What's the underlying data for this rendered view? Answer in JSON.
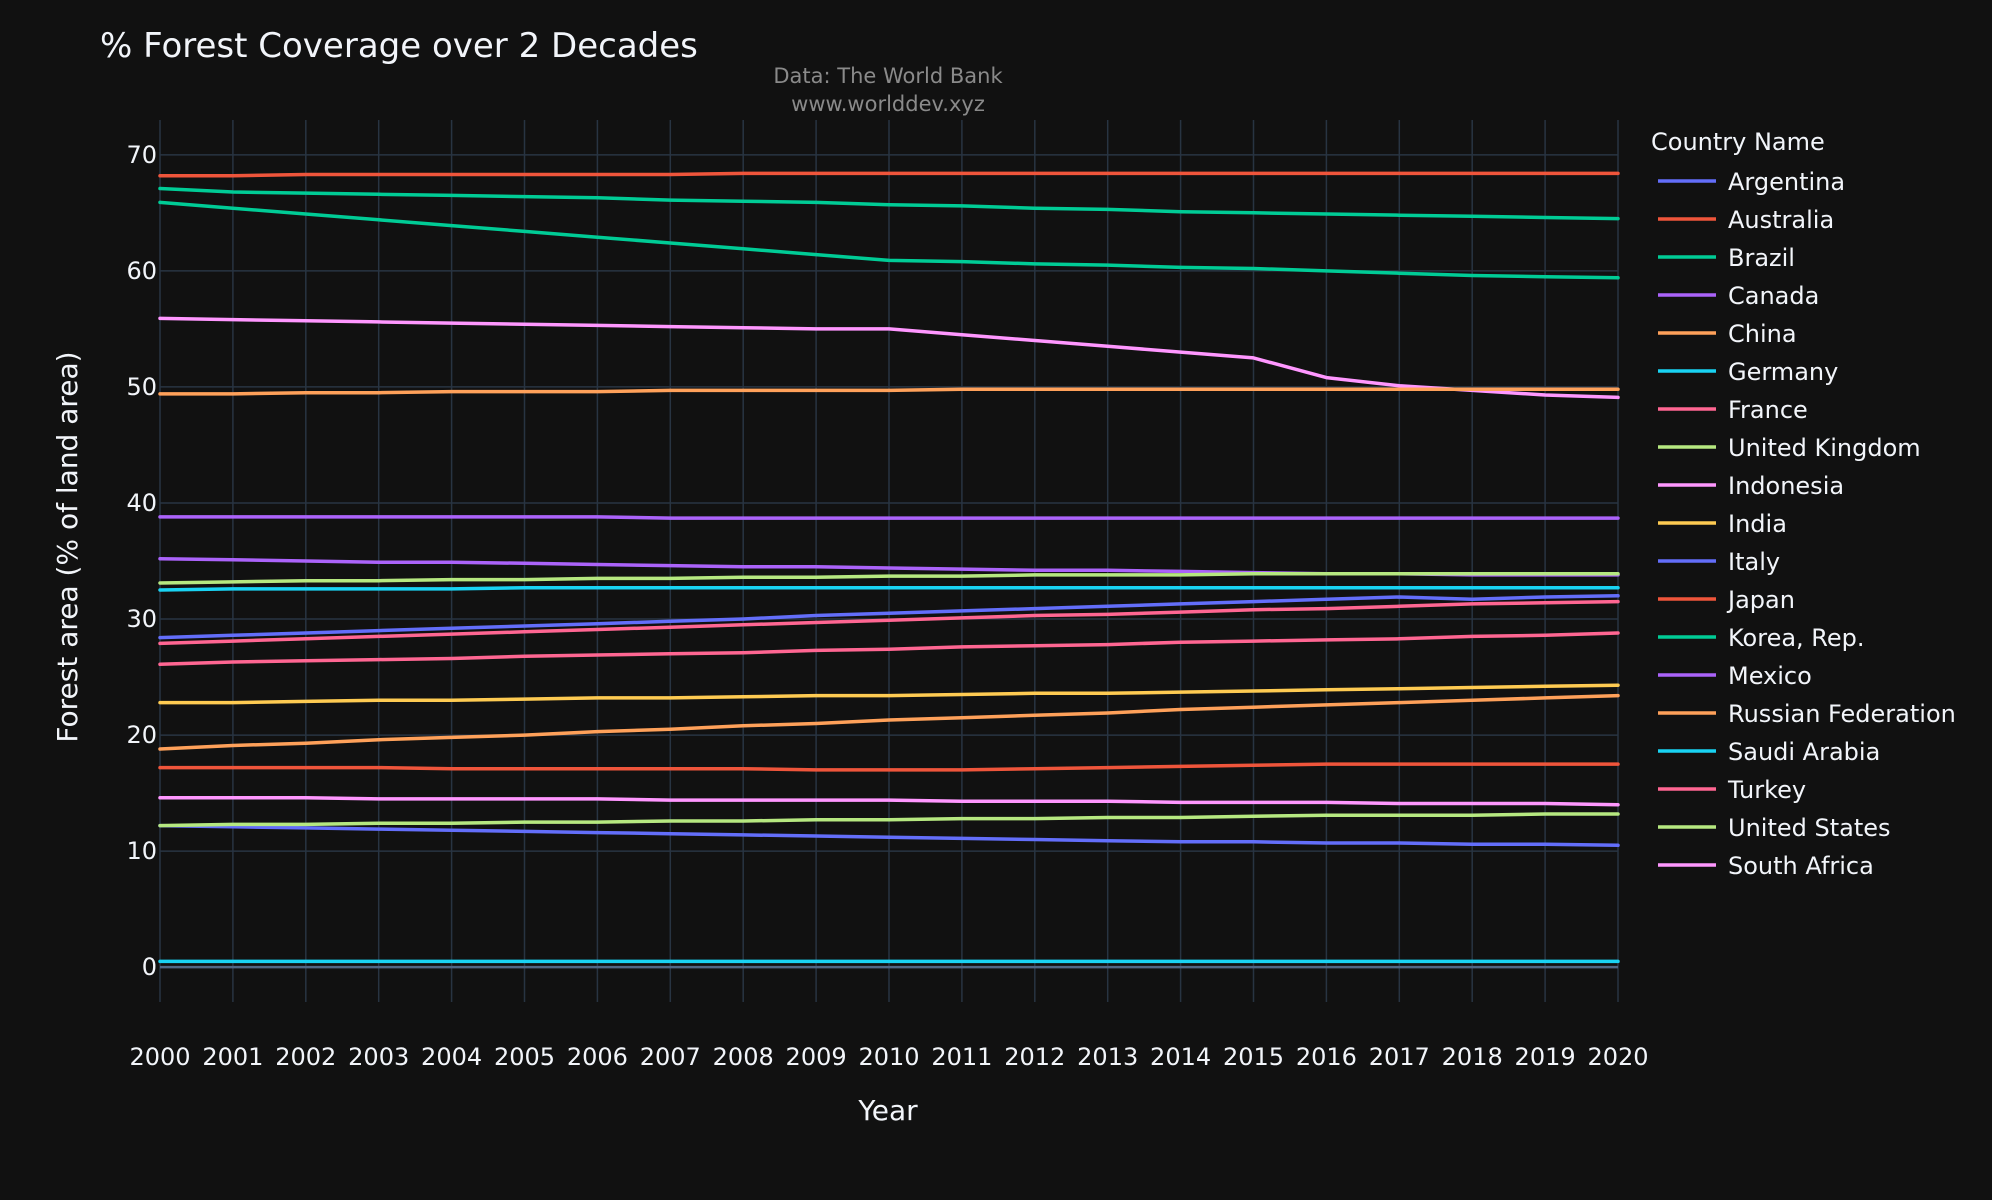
{
  "chart_data": {
    "type": "line",
    "title": "% Forest Coverage over 2 Decades",
    "annotation_lines": [
      "Data: The World Bank",
      "www.worlddev.xyz"
    ],
    "xlabel": "Year",
    "ylabel": "Forest area (% of land area)",
    "xlim": [
      2000,
      2020
    ],
    "ylim": [
      -3,
      73
    ],
    "yticks": [
      0,
      10,
      20,
      30,
      40,
      50,
      60,
      70
    ],
    "xticks": [
      2000,
      2001,
      2002,
      2003,
      2004,
      2005,
      2006,
      2007,
      2008,
      2009,
      2010,
      2011,
      2012,
      2013,
      2014,
      2015,
      2016,
      2017,
      2018,
      2019,
      2020
    ],
    "grid": true,
    "legend": {
      "title": "Country Name",
      "position": "right"
    },
    "x": [
      2000,
      2001,
      2002,
      2003,
      2004,
      2005,
      2006,
      2007,
      2008,
      2009,
      2010,
      2011,
      2012,
      2013,
      2014,
      2015,
      2016,
      2017,
      2018,
      2019,
      2020
    ],
    "series": [
      {
        "name": "Argentina",
        "color": "#636efa",
        "values": [
          12.2,
          12.1,
          12.0,
          11.9,
          11.8,
          11.7,
          11.6,
          11.5,
          11.4,
          11.3,
          11.2,
          11.1,
          11.0,
          10.9,
          10.8,
          10.8,
          10.7,
          10.7,
          10.6,
          10.6,
          10.5
        ]
      },
      {
        "name": "Australia",
        "color": "#ef553b",
        "values": [
          17.2,
          17.2,
          17.2,
          17.2,
          17.1,
          17.1,
          17.1,
          17.1,
          17.1,
          17.0,
          17.0,
          17.0,
          17.1,
          17.2,
          17.3,
          17.4,
          17.5,
          17.5,
          17.5,
          17.5,
          17.5
        ]
      },
      {
        "name": "Brazil",
        "color": "#00cc96",
        "values": [
          65.9,
          65.4,
          64.9,
          64.4,
          63.9,
          63.4,
          62.9,
          62.4,
          61.9,
          61.4,
          60.9,
          60.8,
          60.6,
          60.5,
          60.3,
          60.2,
          60.0,
          59.8,
          59.6,
          59.5,
          59.4
        ]
      },
      {
        "name": "Canada",
        "color": "#ab63fa",
        "values": [
          38.8,
          38.8,
          38.8,
          38.8,
          38.8,
          38.8,
          38.8,
          38.7,
          38.7,
          38.7,
          38.7,
          38.7,
          38.7,
          38.7,
          38.7,
          38.7,
          38.7,
          38.7,
          38.7,
          38.7,
          38.7
        ]
      },
      {
        "name": "China",
        "color": "#ffa15a",
        "values": [
          18.8,
          19.1,
          19.3,
          19.6,
          19.8,
          20.0,
          20.3,
          20.5,
          20.8,
          21.0,
          21.3,
          21.5,
          21.7,
          21.9,
          22.2,
          22.4,
          22.6,
          22.8,
          23.0,
          23.2,
          23.4
        ]
      },
      {
        "name": "Germany",
        "color": "#19d3f3",
        "values": [
          32.5,
          32.6,
          32.6,
          32.6,
          32.6,
          32.7,
          32.7,
          32.7,
          32.7,
          32.7,
          32.7,
          32.7,
          32.7,
          32.7,
          32.7,
          32.7,
          32.7,
          32.7,
          32.7,
          32.7,
          32.7
        ]
      },
      {
        "name": "France",
        "color": "#ff6692",
        "values": [
          26.1,
          26.3,
          26.4,
          26.5,
          26.6,
          26.8,
          26.9,
          27.0,
          27.1,
          27.3,
          27.4,
          27.6,
          27.7,
          27.8,
          28.0,
          28.1,
          28.2,
          28.3,
          28.5,
          28.6,
          28.8
        ]
      },
      {
        "name": "United Kingdom",
        "color": "#b6e880",
        "values": [
          12.2,
          12.3,
          12.3,
          12.4,
          12.4,
          12.5,
          12.5,
          12.6,
          12.6,
          12.7,
          12.7,
          12.8,
          12.8,
          12.9,
          12.9,
          13.0,
          13.1,
          13.1,
          13.1,
          13.2,
          13.2
        ]
      },
      {
        "name": "Indonesia",
        "color": "#ff97ff",
        "values": [
          55.9,
          55.8,
          55.7,
          55.6,
          55.5,
          55.4,
          55.3,
          55.2,
          55.1,
          55.0,
          55.0,
          54.5,
          54.0,
          53.5,
          53.0,
          52.5,
          50.8,
          50.1,
          49.7,
          49.3,
          49.1
        ]
      },
      {
        "name": "India",
        "color": "#fecb52",
        "values": [
          22.8,
          22.8,
          22.9,
          23.0,
          23.0,
          23.1,
          23.2,
          23.2,
          23.3,
          23.4,
          23.4,
          23.5,
          23.6,
          23.6,
          23.7,
          23.8,
          23.9,
          24.0,
          24.1,
          24.2,
          24.3
        ]
      },
      {
        "name": "Italy",
        "color": "#636efa",
        "values": [
          28.4,
          28.6,
          28.8,
          29.0,
          29.2,
          29.4,
          29.6,
          29.8,
          30.0,
          30.3,
          30.5,
          30.7,
          30.9,
          31.1,
          31.3,
          31.5,
          31.7,
          31.9,
          31.7,
          31.9,
          32.0
        ]
      },
      {
        "name": "Japan",
        "color": "#ef553b",
        "values": [
          68.2,
          68.2,
          68.3,
          68.3,
          68.3,
          68.3,
          68.3,
          68.3,
          68.4,
          68.4,
          68.4,
          68.4,
          68.4,
          68.4,
          68.4,
          68.4,
          68.4,
          68.4,
          68.4,
          68.4,
          68.4
        ]
      },
      {
        "name": "Korea, Rep.",
        "color": "#00cc96",
        "values": [
          67.1,
          66.8,
          66.7,
          66.6,
          66.5,
          66.4,
          66.3,
          66.1,
          66.0,
          65.9,
          65.7,
          65.6,
          65.4,
          65.3,
          65.1,
          65.0,
          64.9,
          64.8,
          64.7,
          64.6,
          64.5
        ]
      },
      {
        "name": "Mexico",
        "color": "#ab63fa",
        "values": [
          35.2,
          35.1,
          35.0,
          34.9,
          34.9,
          34.8,
          34.7,
          34.6,
          34.5,
          34.5,
          34.4,
          34.3,
          34.2,
          34.2,
          34.1,
          34.0,
          33.9,
          33.9,
          33.8,
          33.8,
          33.8
        ]
      },
      {
        "name": "Russian Federation",
        "color": "#ffa15a",
        "values": [
          49.4,
          49.4,
          49.5,
          49.5,
          49.6,
          49.6,
          49.6,
          49.7,
          49.7,
          49.7,
          49.7,
          49.8,
          49.8,
          49.8,
          49.8,
          49.8,
          49.8,
          49.8,
          49.8,
          49.8,
          49.8
        ]
      },
      {
        "name": "Saudi Arabia",
        "color": "#19d3f3",
        "values": [
          0.5,
          0.5,
          0.5,
          0.5,
          0.5,
          0.5,
          0.5,
          0.5,
          0.5,
          0.5,
          0.5,
          0.5,
          0.5,
          0.5,
          0.5,
          0.5,
          0.5,
          0.5,
          0.5,
          0.5,
          0.5
        ]
      },
      {
        "name": "Turkey",
        "color": "#ff6692",
        "values": [
          27.9,
          28.1,
          28.3,
          28.5,
          28.7,
          28.9,
          29.1,
          29.3,
          29.5,
          29.7,
          29.9,
          30.1,
          30.3,
          30.4,
          30.6,
          30.8,
          30.9,
          31.1,
          31.3,
          31.4,
          31.5
        ]
      },
      {
        "name": "United States",
        "color": "#b6e880",
        "values": [
          33.1,
          33.2,
          33.3,
          33.3,
          33.4,
          33.4,
          33.5,
          33.5,
          33.6,
          33.6,
          33.7,
          33.7,
          33.8,
          33.8,
          33.8,
          33.9,
          33.9,
          33.9,
          33.9,
          33.9,
          33.9
        ]
      },
      {
        "name": "South Africa",
        "color": "#ff97ff",
        "values": [
          14.6,
          14.6,
          14.6,
          14.5,
          14.5,
          14.5,
          14.5,
          14.4,
          14.4,
          14.4,
          14.4,
          14.3,
          14.3,
          14.3,
          14.2,
          14.2,
          14.2,
          14.1,
          14.1,
          14.1,
          14.0
        ]
      }
    ]
  }
}
